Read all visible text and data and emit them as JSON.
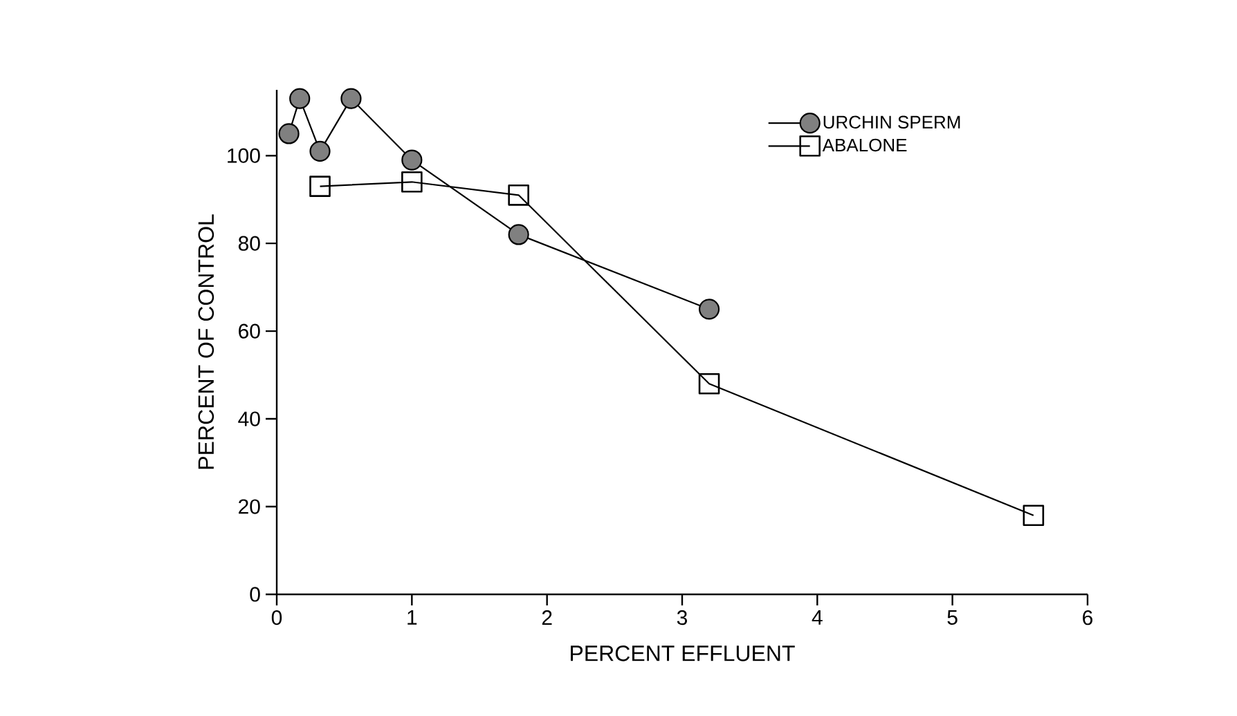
{
  "chart_data": {
    "type": "line",
    "xlabel": "PERCENT EFFLUENT",
    "ylabel": "PERCENT OF CONTROL",
    "xlim": [
      0,
      6
    ],
    "xticks": [
      0,
      1,
      2,
      3,
      4,
      5,
      6
    ],
    "ylim": [
      0,
      115
    ],
    "yticks": [
      0,
      20,
      40,
      60,
      80,
      100
    ],
    "grid": false,
    "legend": "top right",
    "line_style": "solid",
    "series": [
      {
        "name": "URCHIN SPERM",
        "color": "#808080",
        "marker": "circle",
        "x": [
          0.09,
          0.17,
          0.32,
          0.55,
          1.0,
          1.79,
          3.2
        ],
        "values": [
          105,
          113,
          101,
          113,
          99,
          82,
          65
        ]
      },
      {
        "name": "ABALONE",
        "color": "#000000",
        "marker": "square",
        "x": [
          0.32,
          1.0,
          1.79,
          3.2,
          5.6
        ],
        "values": [
          93,
          94,
          91,
          48,
          18
        ]
      }
    ]
  }
}
